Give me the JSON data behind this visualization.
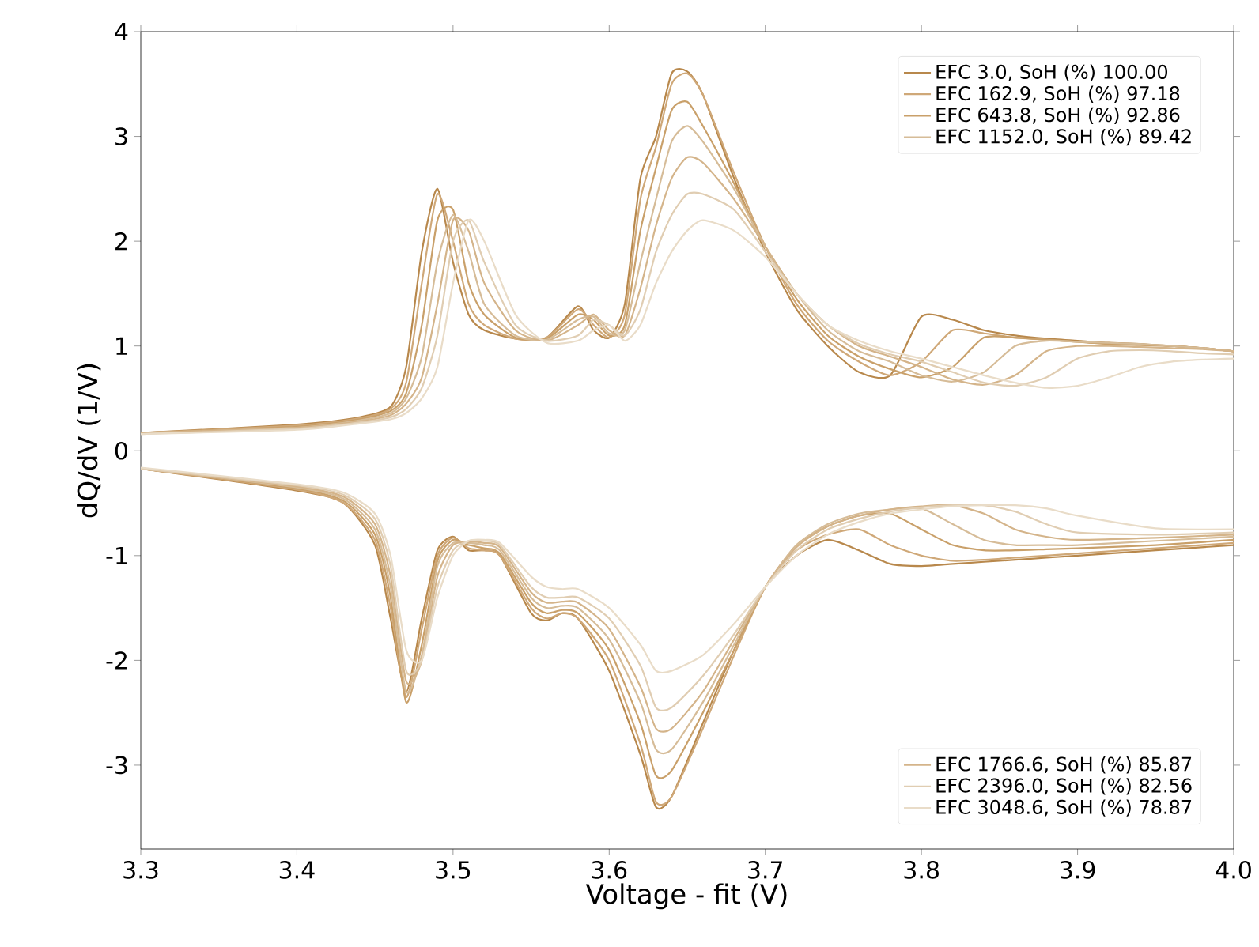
{
  "chart_data": {
    "type": "line",
    "xlabel": "Voltage - fit (V)",
    "ylabel": "dQ/dV (1/V)",
    "xlim": [
      3.3,
      4.0
    ],
    "ylim": [
      -3.8,
      4
    ],
    "xticks": [
      3.3,
      3.4,
      3.5,
      3.6,
      3.7,
      3.8,
      3.9,
      {
        "value": 4.0,
        "label": "4.0"
      }
    ],
    "yticks": [
      -3,
      -2,
      -1,
      0,
      1,
      2,
      3,
      4
    ],
    "legend": "right",
    "grid": false,
    "marker": "none",
    "line_style": "solid",
    "series": [
      {
        "name": "EFC 3.0, SoH (%) 100.00",
        "color": "#b8884c",
        "x": [
          3.3,
          3.4,
          3.44,
          3.46,
          3.47,
          3.48,
          3.49,
          3.5,
          3.51,
          3.52,
          3.54,
          3.56,
          3.58,
          3.59,
          3.6,
          3.61,
          3.62,
          3.63,
          3.64,
          3.65,
          3.66,
          3.68,
          3.7,
          3.72,
          3.74,
          3.76,
          3.78,
          3.8,
          3.82,
          3.84,
          3.86,
          3.88,
          3.9,
          3.92,
          3.94,
          3.96,
          3.98,
          4.0
        ],
        "values": [
          0.17,
          0.25,
          0.32,
          0.42,
          0.8,
          1.9,
          2.5,
          1.8,
          1.3,
          1.15,
          1.07,
          1.08,
          1.38,
          1.15,
          1.08,
          1.4,
          2.6,
          3.0,
          3.6,
          3.62,
          3.4,
          2.6,
          1.9,
          1.35,
          1.0,
          0.75,
          0.72,
          1.28,
          1.25,
          1.15,
          1.1,
          1.07,
          1.05,
          1.03,
          1.02,
          1.0,
          0.98,
          0.95
        ]
      },
      {
        "name": "EFC 162.9, SoH (%) 97.18",
        "color": "#cfa878",
        "x": [
          3.3,
          3.4,
          3.44,
          3.46,
          3.47,
          3.48,
          3.49,
          3.5,
          3.51,
          3.52,
          3.54,
          3.56,
          3.58,
          3.59,
          3.6,
          3.61,
          3.62,
          3.63,
          3.64,
          3.65,
          3.66,
          3.68,
          3.7,
          3.72,
          3.74,
          3.76,
          3.78,
          3.8,
          3.82,
          3.84,
          3.86,
          3.88,
          3.9,
          3.92,
          3.94,
          3.96,
          3.98,
          4.0
        ],
        "values": [
          0.17,
          0.24,
          0.31,
          0.4,
          0.65,
          1.6,
          2.45,
          2.0,
          1.4,
          1.2,
          1.07,
          1.08,
          1.35,
          1.2,
          1.08,
          1.3,
          2.4,
          2.9,
          3.5,
          3.6,
          3.4,
          2.65,
          1.95,
          1.4,
          1.05,
          0.85,
          0.72,
          0.85,
          1.15,
          1.12,
          1.08,
          1.06,
          1.04,
          1.02,
          1.01,
          1.0,
          0.98,
          0.95
        ]
      },
      {
        "name": "EFC 643.8, SoH (%) 92.86",
        "color": "#c9a06a",
        "x": [
          3.3,
          3.4,
          3.44,
          3.46,
          3.47,
          3.48,
          3.49,
          3.5,
          3.51,
          3.52,
          3.54,
          3.56,
          3.58,
          3.59,
          3.6,
          3.61,
          3.62,
          3.63,
          3.64,
          3.65,
          3.66,
          3.68,
          3.7,
          3.72,
          3.74,
          3.76,
          3.78,
          3.8,
          3.82,
          3.84,
          3.86,
          3.88,
          3.9,
          3.92,
          3.94,
          3.96,
          3.98,
          4.0
        ],
        "values": [
          0.17,
          0.23,
          0.3,
          0.38,
          0.55,
          1.2,
          2.2,
          2.3,
          1.6,
          1.3,
          1.08,
          1.07,
          1.3,
          1.25,
          1.1,
          1.2,
          2.1,
          2.7,
          3.25,
          3.33,
          3.1,
          2.55,
          1.95,
          1.45,
          1.1,
          0.9,
          0.78,
          0.7,
          0.8,
          1.08,
          1.08,
          1.06,
          1.04,
          1.02,
          1.01,
          1.0,
          0.98,
          0.95
        ]
      },
      {
        "name": "EFC 1152.0, SoH (%) 89.42",
        "color": "#d6bc98",
        "x": [
          3.3,
          3.4,
          3.44,
          3.46,
          3.47,
          3.48,
          3.49,
          3.5,
          3.51,
          3.52,
          3.54,
          3.56,
          3.58,
          3.59,
          3.6,
          3.61,
          3.62,
          3.63,
          3.64,
          3.65,
          3.66,
          3.68,
          3.7,
          3.72,
          3.74,
          3.76,
          3.78,
          3.8,
          3.82,
          3.84,
          3.86,
          3.88,
          3.9,
          3.92,
          3.94,
          3.96,
          3.98,
          4.0
        ],
        "values": [
          0.17,
          0.22,
          0.29,
          0.36,
          0.5,
          0.9,
          1.8,
          2.25,
          1.9,
          1.4,
          1.1,
          1.06,
          1.25,
          1.28,
          1.12,
          1.15,
          1.8,
          2.4,
          2.95,
          3.1,
          2.95,
          2.5,
          1.95,
          1.5,
          1.15,
          0.95,
          0.85,
          0.72,
          0.66,
          0.75,
          1.0,
          1.05,
          1.04,
          1.03,
          1.02,
          1.0,
          0.98,
          0.95
        ]
      },
      {
        "name": "EFC 1766.6, SoH (%) 85.87",
        "color": "#d4b48a",
        "x": [
          3.3,
          3.4,
          3.44,
          3.46,
          3.47,
          3.48,
          3.49,
          3.5,
          3.51,
          3.52,
          3.54,
          3.56,
          3.58,
          3.59,
          3.6,
          3.61,
          3.62,
          3.63,
          3.64,
          3.65,
          3.66,
          3.68,
          3.7,
          3.72,
          3.74,
          3.76,
          3.78,
          3.8,
          3.82,
          3.84,
          3.86,
          3.88,
          3.9,
          3.92,
          3.94,
          3.96,
          3.98,
          4.0
        ],
        "values": [
          0.17,
          0.22,
          0.28,
          0.34,
          0.45,
          0.7,
          1.4,
          2.2,
          2.1,
          1.6,
          1.15,
          1.05,
          1.2,
          1.3,
          1.15,
          1.1,
          1.55,
          2.15,
          2.6,
          2.8,
          2.75,
          2.4,
          1.95,
          1.5,
          1.2,
          1.0,
          0.9,
          0.8,
          0.68,
          0.63,
          0.72,
          0.95,
          1.0,
          1.0,
          0.99,
          0.98,
          0.97,
          0.95
        ]
      },
      {
        "name": "EFC 2396.0, SoH (%) 82.56",
        "color": "#e0cdb2",
        "x": [
          3.3,
          3.4,
          3.44,
          3.46,
          3.47,
          3.48,
          3.49,
          3.5,
          3.51,
          3.52,
          3.54,
          3.56,
          3.58,
          3.59,
          3.6,
          3.61,
          3.62,
          3.63,
          3.64,
          3.65,
          3.66,
          3.68,
          3.7,
          3.72,
          3.74,
          3.76,
          3.78,
          3.8,
          3.82,
          3.84,
          3.86,
          3.88,
          3.9,
          3.92,
          3.94,
          3.96,
          3.98,
          4.0
        ],
        "values": [
          0.16,
          0.21,
          0.27,
          0.32,
          0.4,
          0.6,
          1.1,
          2.0,
          2.2,
          1.8,
          1.2,
          1.05,
          1.1,
          1.25,
          1.2,
          1.1,
          1.35,
          1.9,
          2.25,
          2.45,
          2.45,
          2.3,
          1.9,
          1.5,
          1.2,
          1.02,
          0.92,
          0.85,
          0.75,
          0.65,
          0.62,
          0.7,
          0.88,
          0.95,
          0.96,
          0.95,
          0.93,
          0.92
        ]
      },
      {
        "name": "EFC 3048.6, SoH (%) 78.87",
        "color": "#e9dcc8",
        "x": [
          3.3,
          3.4,
          3.44,
          3.46,
          3.47,
          3.48,
          3.49,
          3.5,
          3.51,
          3.52,
          3.54,
          3.56,
          3.58,
          3.59,
          3.6,
          3.61,
          3.62,
          3.63,
          3.64,
          3.65,
          3.66,
          3.68,
          3.7,
          3.72,
          3.74,
          3.76,
          3.78,
          3.8,
          3.82,
          3.84,
          3.86,
          3.88,
          3.9,
          3.92,
          3.94,
          3.96,
          3.98,
          4.0
        ],
        "values": [
          0.16,
          0.2,
          0.26,
          0.3,
          0.36,
          0.5,
          0.8,
          1.6,
          2.2,
          2.0,
          1.3,
          1.03,
          1.05,
          1.15,
          1.2,
          1.05,
          1.2,
          1.6,
          1.9,
          2.1,
          2.2,
          2.1,
          1.85,
          1.5,
          1.2,
          1.05,
          0.95,
          0.88,
          0.8,
          0.72,
          0.65,
          0.6,
          0.62,
          0.7,
          0.8,
          0.85,
          0.87,
          0.88
        ]
      },
      {
        "color": "#b8884c",
        "x": [
          3.3,
          3.4,
          3.43,
          3.45,
          3.46,
          3.47,
          3.48,
          3.49,
          3.5,
          3.51,
          3.52,
          3.53,
          3.55,
          3.56,
          3.57,
          3.58,
          3.6,
          3.62,
          3.63,
          3.64,
          3.66,
          3.68,
          3.7,
          3.72,
          3.74,
          3.76,
          3.78,
          3.8,
          3.82,
          3.84,
          3.86,
          3.88,
          3.9,
          3.95,
          4.0
        ],
        "values": [
          -0.17,
          -0.38,
          -0.5,
          -0.9,
          -1.6,
          -2.3,
          -1.6,
          -0.95,
          -0.82,
          -0.95,
          -0.95,
          -1.0,
          -1.55,
          -1.62,
          -1.55,
          -1.6,
          -2.1,
          -2.9,
          -3.4,
          -3.3,
          -2.6,
          -1.9,
          -1.3,
          -1.0,
          -0.85,
          -0.95,
          -1.08,
          -1.1,
          -1.08,
          -1.06,
          -1.04,
          -1.02,
          -1.0,
          -0.95,
          -0.9
        ]
      },
      {
        "color": "#cfa878",
        "x": [
          3.3,
          3.4,
          3.43,
          3.45,
          3.46,
          3.47,
          3.48,
          3.49,
          3.5,
          3.51,
          3.52,
          3.53,
          3.55,
          3.56,
          3.57,
          3.58,
          3.6,
          3.62,
          3.63,
          3.64,
          3.66,
          3.68,
          3.7,
          3.72,
          3.74,
          3.76,
          3.78,
          3.8,
          3.82,
          3.84,
          3.86,
          3.88,
          3.9,
          3.95,
          4.0
        ],
        "values": [
          -0.17,
          -0.37,
          -0.5,
          -0.85,
          -1.5,
          -2.35,
          -1.7,
          -1.0,
          -0.83,
          -0.93,
          -0.95,
          -1.0,
          -1.5,
          -1.6,
          -1.55,
          -1.6,
          -2.0,
          -2.8,
          -3.35,
          -3.3,
          -2.65,
          -1.95,
          -1.3,
          -0.95,
          -0.8,
          -0.75,
          -0.9,
          -1.0,
          -1.05,
          -1.04,
          -1.02,
          -1.0,
          -0.98,
          -0.93,
          -0.88
        ]
      },
      {
        "color": "#c9a06a",
        "x": [
          3.3,
          3.4,
          3.43,
          3.45,
          3.46,
          3.47,
          3.48,
          3.49,
          3.5,
          3.51,
          3.52,
          3.53,
          3.55,
          3.56,
          3.57,
          3.58,
          3.6,
          3.62,
          3.63,
          3.64,
          3.66,
          3.68,
          3.7,
          3.72,
          3.74,
          3.76,
          3.78,
          3.8,
          3.82,
          3.84,
          3.86,
          3.88,
          3.9,
          3.95,
          4.0
        ],
        "values": [
          -0.17,
          -0.36,
          -0.48,
          -0.8,
          -1.4,
          -2.4,
          -1.85,
          -1.05,
          -0.85,
          -0.9,
          -0.93,
          -0.98,
          -1.45,
          -1.55,
          -1.52,
          -1.55,
          -1.9,
          -2.6,
          -3.1,
          -3.05,
          -2.5,
          -1.9,
          -1.3,
          -0.9,
          -0.72,
          -0.62,
          -0.6,
          -0.75,
          -0.9,
          -0.95,
          -0.95,
          -0.94,
          -0.93,
          -0.9,
          -0.85
        ]
      },
      {
        "color": "#d6bc98",
        "x": [
          3.3,
          3.4,
          3.43,
          3.45,
          3.46,
          3.47,
          3.48,
          3.49,
          3.5,
          3.51,
          3.52,
          3.53,
          3.55,
          3.56,
          3.57,
          3.58,
          3.6,
          3.62,
          3.63,
          3.64,
          3.66,
          3.68,
          3.7,
          3.72,
          3.74,
          3.76,
          3.78,
          3.8,
          3.82,
          3.84,
          3.86,
          3.88,
          3.9,
          3.95,
          4.0
        ],
        "values": [
          -0.17,
          -0.35,
          -0.46,
          -0.75,
          -1.3,
          -2.3,
          -1.95,
          -1.1,
          -0.88,
          -0.88,
          -0.9,
          -0.95,
          -1.4,
          -1.5,
          -1.48,
          -1.5,
          -1.8,
          -2.4,
          -2.85,
          -2.85,
          -2.4,
          -1.85,
          -1.3,
          -0.9,
          -0.7,
          -0.6,
          -0.56,
          -0.55,
          -0.7,
          -0.85,
          -0.9,
          -0.9,
          -0.9,
          -0.86,
          -0.82
        ]
      },
      {
        "color": "#d4b48a",
        "x": [
          3.3,
          3.4,
          3.43,
          3.45,
          3.46,
          3.47,
          3.48,
          3.49,
          3.5,
          3.51,
          3.52,
          3.53,
          3.55,
          3.56,
          3.57,
          3.58,
          3.6,
          3.62,
          3.63,
          3.64,
          3.66,
          3.68,
          3.7,
          3.72,
          3.74,
          3.76,
          3.78,
          3.8,
          3.82,
          3.84,
          3.86,
          3.88,
          3.9,
          3.95,
          4.0
        ],
        "values": [
          -0.17,
          -0.34,
          -0.44,
          -0.7,
          -1.2,
          -2.2,
          -2.0,
          -1.2,
          -0.9,
          -0.87,
          -0.88,
          -0.92,
          -1.35,
          -1.45,
          -1.44,
          -1.45,
          -1.7,
          -2.25,
          -2.65,
          -2.65,
          -2.3,
          -1.8,
          -1.3,
          -0.92,
          -0.72,
          -0.62,
          -0.56,
          -0.53,
          -0.52,
          -0.6,
          -0.75,
          -0.82,
          -0.85,
          -0.83,
          -0.8
        ]
      },
      {
        "color": "#e0cdb2",
        "x": [
          3.3,
          3.4,
          3.43,
          3.45,
          3.46,
          3.47,
          3.48,
          3.49,
          3.5,
          3.51,
          3.52,
          3.53,
          3.55,
          3.56,
          3.57,
          3.58,
          3.6,
          3.62,
          3.63,
          3.64,
          3.66,
          3.68,
          3.7,
          3.72,
          3.74,
          3.76,
          3.78,
          3.8,
          3.82,
          3.84,
          3.86,
          3.88,
          3.9,
          3.95,
          4.0
        ],
        "values": [
          -0.17,
          -0.33,
          -0.42,
          -0.65,
          -1.1,
          -2.1,
          -2.0,
          -1.3,
          -0.95,
          -0.86,
          -0.86,
          -0.9,
          -1.3,
          -1.4,
          -1.4,
          -1.4,
          -1.6,
          -2.05,
          -2.45,
          -2.45,
          -2.15,
          -1.75,
          -1.3,
          -0.95,
          -0.75,
          -0.65,
          -0.58,
          -0.54,
          -0.52,
          -0.52,
          -0.58,
          -0.7,
          -0.78,
          -0.8,
          -0.78
        ]
      },
      {
        "color": "#e9dcc8",
        "x": [
          3.3,
          3.4,
          3.43,
          3.45,
          3.46,
          3.47,
          3.48,
          3.49,
          3.5,
          3.51,
          3.52,
          3.53,
          3.55,
          3.56,
          3.57,
          3.58,
          3.6,
          3.62,
          3.63,
          3.64,
          3.66,
          3.68,
          3.7,
          3.72,
          3.74,
          3.76,
          3.78,
          3.8,
          3.82,
          3.84,
          3.86,
          3.88,
          3.9,
          3.95,
          4.0
        ],
        "values": [
          -0.16,
          -0.32,
          -0.4,
          -0.6,
          -1.0,
          -1.9,
          -2.0,
          -1.4,
          -1.0,
          -0.86,
          -0.85,
          -0.88,
          -1.2,
          -1.3,
          -1.32,
          -1.32,
          -1.5,
          -1.85,
          -2.1,
          -2.1,
          -1.95,
          -1.65,
          -1.3,
          -1.0,
          -0.8,
          -0.68,
          -0.6,
          -0.56,
          -0.53,
          -0.52,
          -0.52,
          -0.55,
          -0.62,
          -0.74,
          -0.75
        ]
      }
    ]
  }
}
